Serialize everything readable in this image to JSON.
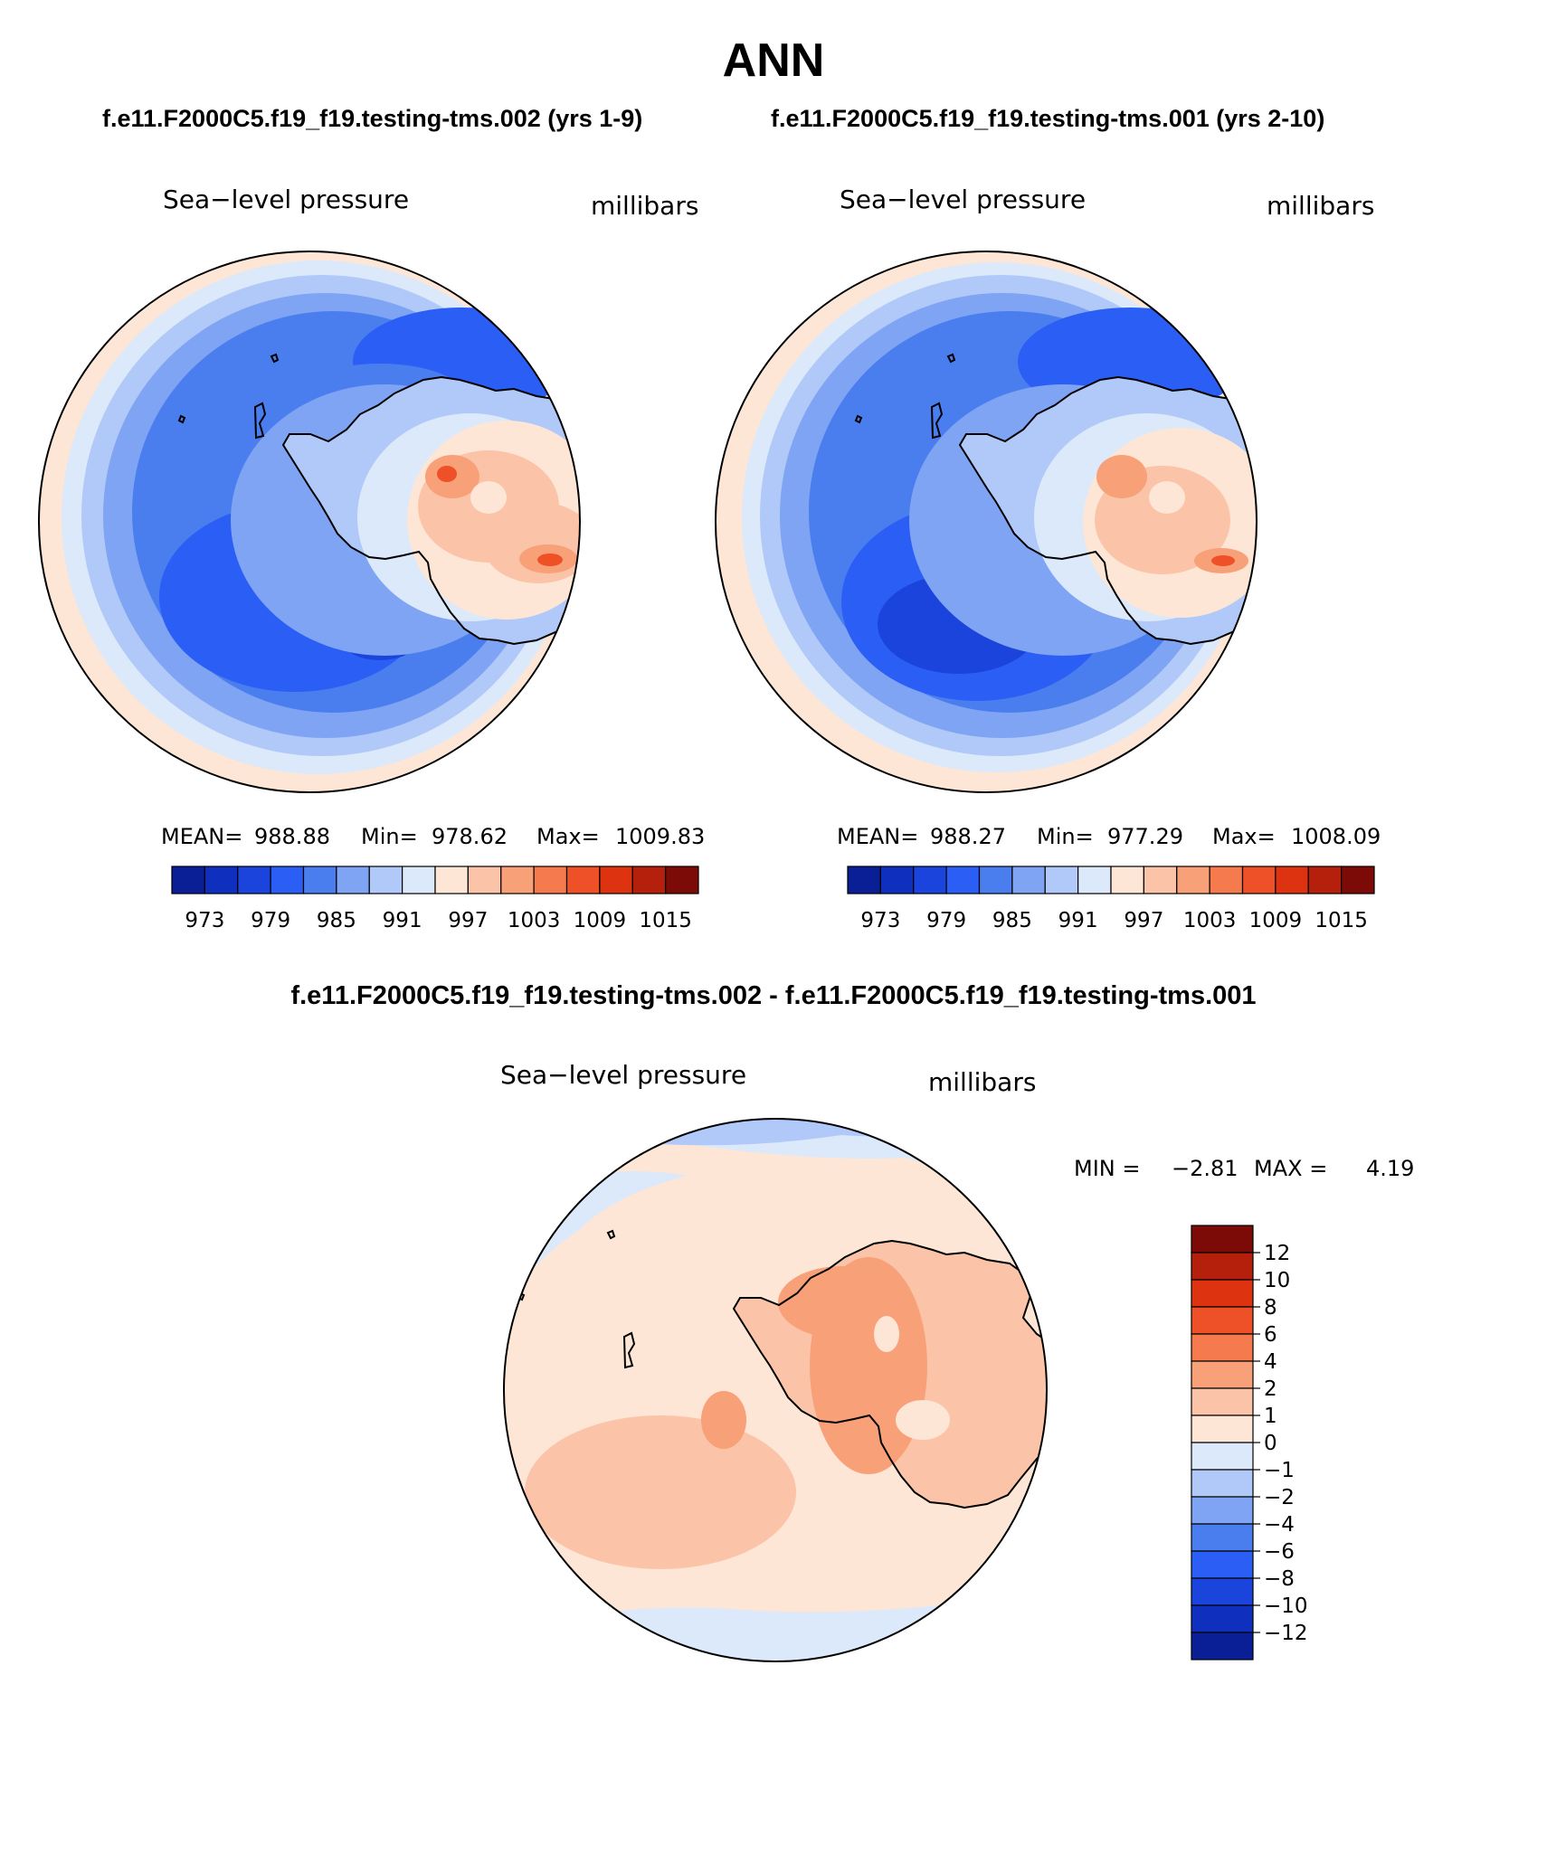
{
  "figure": {
    "title": "ANN",
    "colors": {
      "ocean_light": "#dbe9fb",
      "continent_outline": "#000000"
    }
  },
  "panels": [
    {
      "subtitle": "f.e11.F2000C5.f19_f19.testing-tms.002 (yrs 1-9)",
      "variable": "Sea−level pressure",
      "units": "millibars",
      "stats": {
        "mean_label": "MEAN=",
        "mean": "988.88",
        "min_label": "Min=",
        "min": "978.62",
        "max_label": "Max=",
        "max": "1009.83"
      },
      "colorbar": {
        "colors": [
          "#0a1e96",
          "#0f30bf",
          "#1b44dc",
          "#2b5ef5",
          "#4a7eef",
          "#7ea4f3",
          "#b1c9f8",
          "#dbe9fb",
          "#fde6d6",
          "#fbc4a8",
          "#f8a078",
          "#f57b4f",
          "#ee5027",
          "#dd3310",
          "#b5200d",
          "#7c0a06"
        ],
        "labels": [
          "973",
          "979",
          "985",
          "991",
          "997",
          "1003",
          "1009",
          "1015"
        ]
      }
    },
    {
      "subtitle": "f.e11.F2000C5.f19_f19.testing-tms.001 (yrs 2-10)",
      "variable": "Sea−level pressure",
      "units": "millibars",
      "stats": {
        "mean_label": "MEAN=",
        "mean": "988.27",
        "min_label": "Min=",
        "min": "977.29",
        "max_label": "Max=",
        "max": "1008.09"
      },
      "colorbar": {
        "colors": [
          "#0a1e96",
          "#0f30bf",
          "#1b44dc",
          "#2b5ef5",
          "#4a7eef",
          "#7ea4f3",
          "#b1c9f8",
          "#dbe9fb",
          "#fde6d6",
          "#fbc4a8",
          "#f8a078",
          "#f57b4f",
          "#ee5027",
          "#dd3310",
          "#b5200d",
          "#7c0a06"
        ],
        "labels": [
          "973",
          "979",
          "985",
          "991",
          "997",
          "1003",
          "1009",
          "1015"
        ]
      }
    }
  ],
  "diff_panel": {
    "subtitle": "f.e11.F2000C5.f19_f19.testing-tms.002 - f.e11.F2000C5.f19_f19.testing-tms.001",
    "variable": "Sea−level pressure",
    "units": "millibars",
    "stats": {
      "min_label": "MIN =",
      "min": "−2.81",
      "max_label": "MAX =",
      "max": "4.19"
    },
    "colorbar": {
      "colors_top_to_bottom": [
        "#7c0a06",
        "#b5200d",
        "#dd3310",
        "#ee5027",
        "#f57b4f",
        "#f8a078",
        "#fbc4a8",
        "#fde6d6",
        "#dbe9fb",
        "#b1c9f8",
        "#7ea4f3",
        "#4a7eef",
        "#2b5ef5",
        "#1b44dc",
        "#0f30bf",
        "#0a1e96"
      ],
      "labels_top_to_bottom": [
        "12",
        "10",
        "8",
        "6",
        "4",
        "2",
        "1",
        "0",
        "−1",
        "−2",
        "−4",
        "−6",
        "−8",
        "−10",
        "−12"
      ]
    }
  }
}
